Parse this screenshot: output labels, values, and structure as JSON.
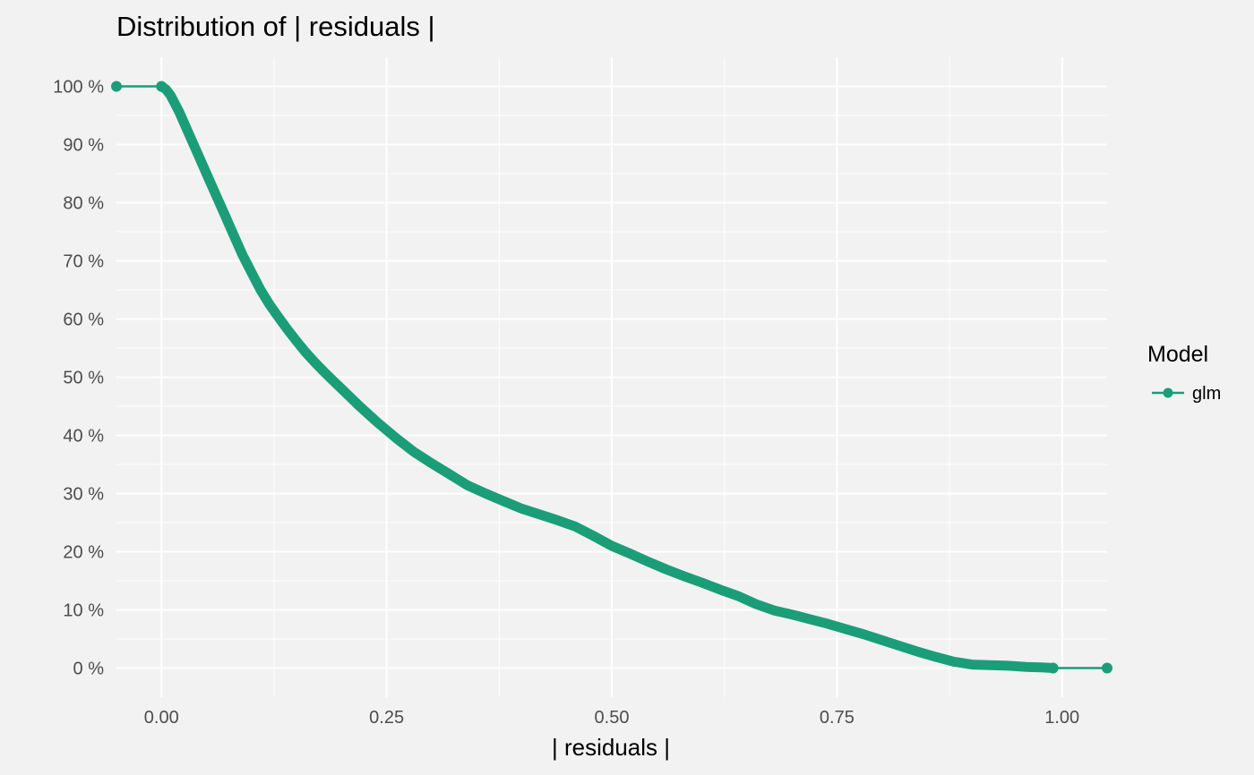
{
  "chart_data": {
    "type": "line",
    "title": "Distribution of | residuals |",
    "xlabel": "| residuals |",
    "ylabel": "",
    "xlim": [
      -0.05,
      1.05
    ],
    "ylim": [
      -0.05,
      1.05
    ],
    "x_ticks": [
      {
        "value": 0.0,
        "label": "0.00"
      },
      {
        "value": 0.25,
        "label": "0.25"
      },
      {
        "value": 0.5,
        "label": "0.50"
      },
      {
        "value": 0.75,
        "label": "0.75"
      },
      {
        "value": 1.0,
        "label": "1.00"
      }
    ],
    "y_ticks": [
      {
        "value": 0.0,
        "label": "0 %"
      },
      {
        "value": 0.1,
        "label": "10 %"
      },
      {
        "value": 0.2,
        "label": "20 %"
      },
      {
        "value": 0.3,
        "label": "30 %"
      },
      {
        "value": 0.4,
        "label": "40 %"
      },
      {
        "value": 0.5,
        "label": "50 %"
      },
      {
        "value": 0.6,
        "label": "60 %"
      },
      {
        "value": 0.7,
        "label": "70 %"
      },
      {
        "value": 0.8,
        "label": "80 %"
      },
      {
        "value": 0.9,
        "label": "90 %"
      },
      {
        "value": 1.0,
        "label": "100 %"
      }
    ],
    "grid": true,
    "legend": {
      "title": "Model",
      "position": "right"
    },
    "series": [
      {
        "name": "glm",
        "color": "#1b9e77",
        "points": [
          [
            -0.05,
            1.0
          ],
          [
            0.0,
            1.0
          ],
          [
            0.005,
            0.995
          ],
          [
            0.01,
            0.985
          ],
          [
            0.015,
            0.97
          ],
          [
            0.02,
            0.955
          ],
          [
            0.03,
            0.92
          ],
          [
            0.04,
            0.885
          ],
          [
            0.05,
            0.85
          ],
          [
            0.06,
            0.815
          ],
          [
            0.07,
            0.78
          ],
          [
            0.08,
            0.745
          ],
          [
            0.09,
            0.71
          ],
          [
            0.1,
            0.68
          ],
          [
            0.11,
            0.65
          ],
          [
            0.12,
            0.625
          ],
          [
            0.13,
            0.603
          ],
          [
            0.14,
            0.582
          ],
          [
            0.15,
            0.562
          ],
          [
            0.16,
            0.543
          ],
          [
            0.17,
            0.526
          ],
          [
            0.18,
            0.51
          ],
          [
            0.19,
            0.495
          ],
          [
            0.2,
            0.48
          ],
          [
            0.22,
            0.45
          ],
          [
            0.24,
            0.422
          ],
          [
            0.26,
            0.396
          ],
          [
            0.28,
            0.372
          ],
          [
            0.3,
            0.352
          ],
          [
            0.32,
            0.333
          ],
          [
            0.34,
            0.314
          ],
          [
            0.36,
            0.3
          ],
          [
            0.38,
            0.287
          ],
          [
            0.4,
            0.274
          ],
          [
            0.42,
            0.264
          ],
          [
            0.44,
            0.254
          ],
          [
            0.46,
            0.243
          ],
          [
            0.48,
            0.227
          ],
          [
            0.5,
            0.21
          ],
          [
            0.52,
            0.197
          ],
          [
            0.54,
            0.183
          ],
          [
            0.56,
            0.17
          ],
          [
            0.58,
            0.158
          ],
          [
            0.6,
            0.147
          ],
          [
            0.62,
            0.135
          ],
          [
            0.64,
            0.124
          ],
          [
            0.66,
            0.11
          ],
          [
            0.68,
            0.099
          ],
          [
            0.7,
            0.092
          ],
          [
            0.72,
            0.084
          ],
          [
            0.74,
            0.076
          ],
          [
            0.76,
            0.067
          ],
          [
            0.78,
            0.058
          ],
          [
            0.8,
            0.048
          ],
          [
            0.82,
            0.038
          ],
          [
            0.84,
            0.028
          ],
          [
            0.86,
            0.019
          ],
          [
            0.88,
            0.011
          ],
          [
            0.9,
            0.006
          ],
          [
            0.92,
            0.005
          ],
          [
            0.94,
            0.004
          ],
          [
            0.96,
            0.002
          ],
          [
            0.98,
            0.001
          ],
          [
            0.99,
            0.0
          ],
          [
            1.05,
            0.0
          ]
        ],
        "markers": [
          [
            -0.05,
            1.0
          ],
          [
            0.0,
            1.0
          ],
          [
            0.99,
            0.0
          ],
          [
            1.05,
            0.0
          ]
        ]
      }
    ]
  }
}
